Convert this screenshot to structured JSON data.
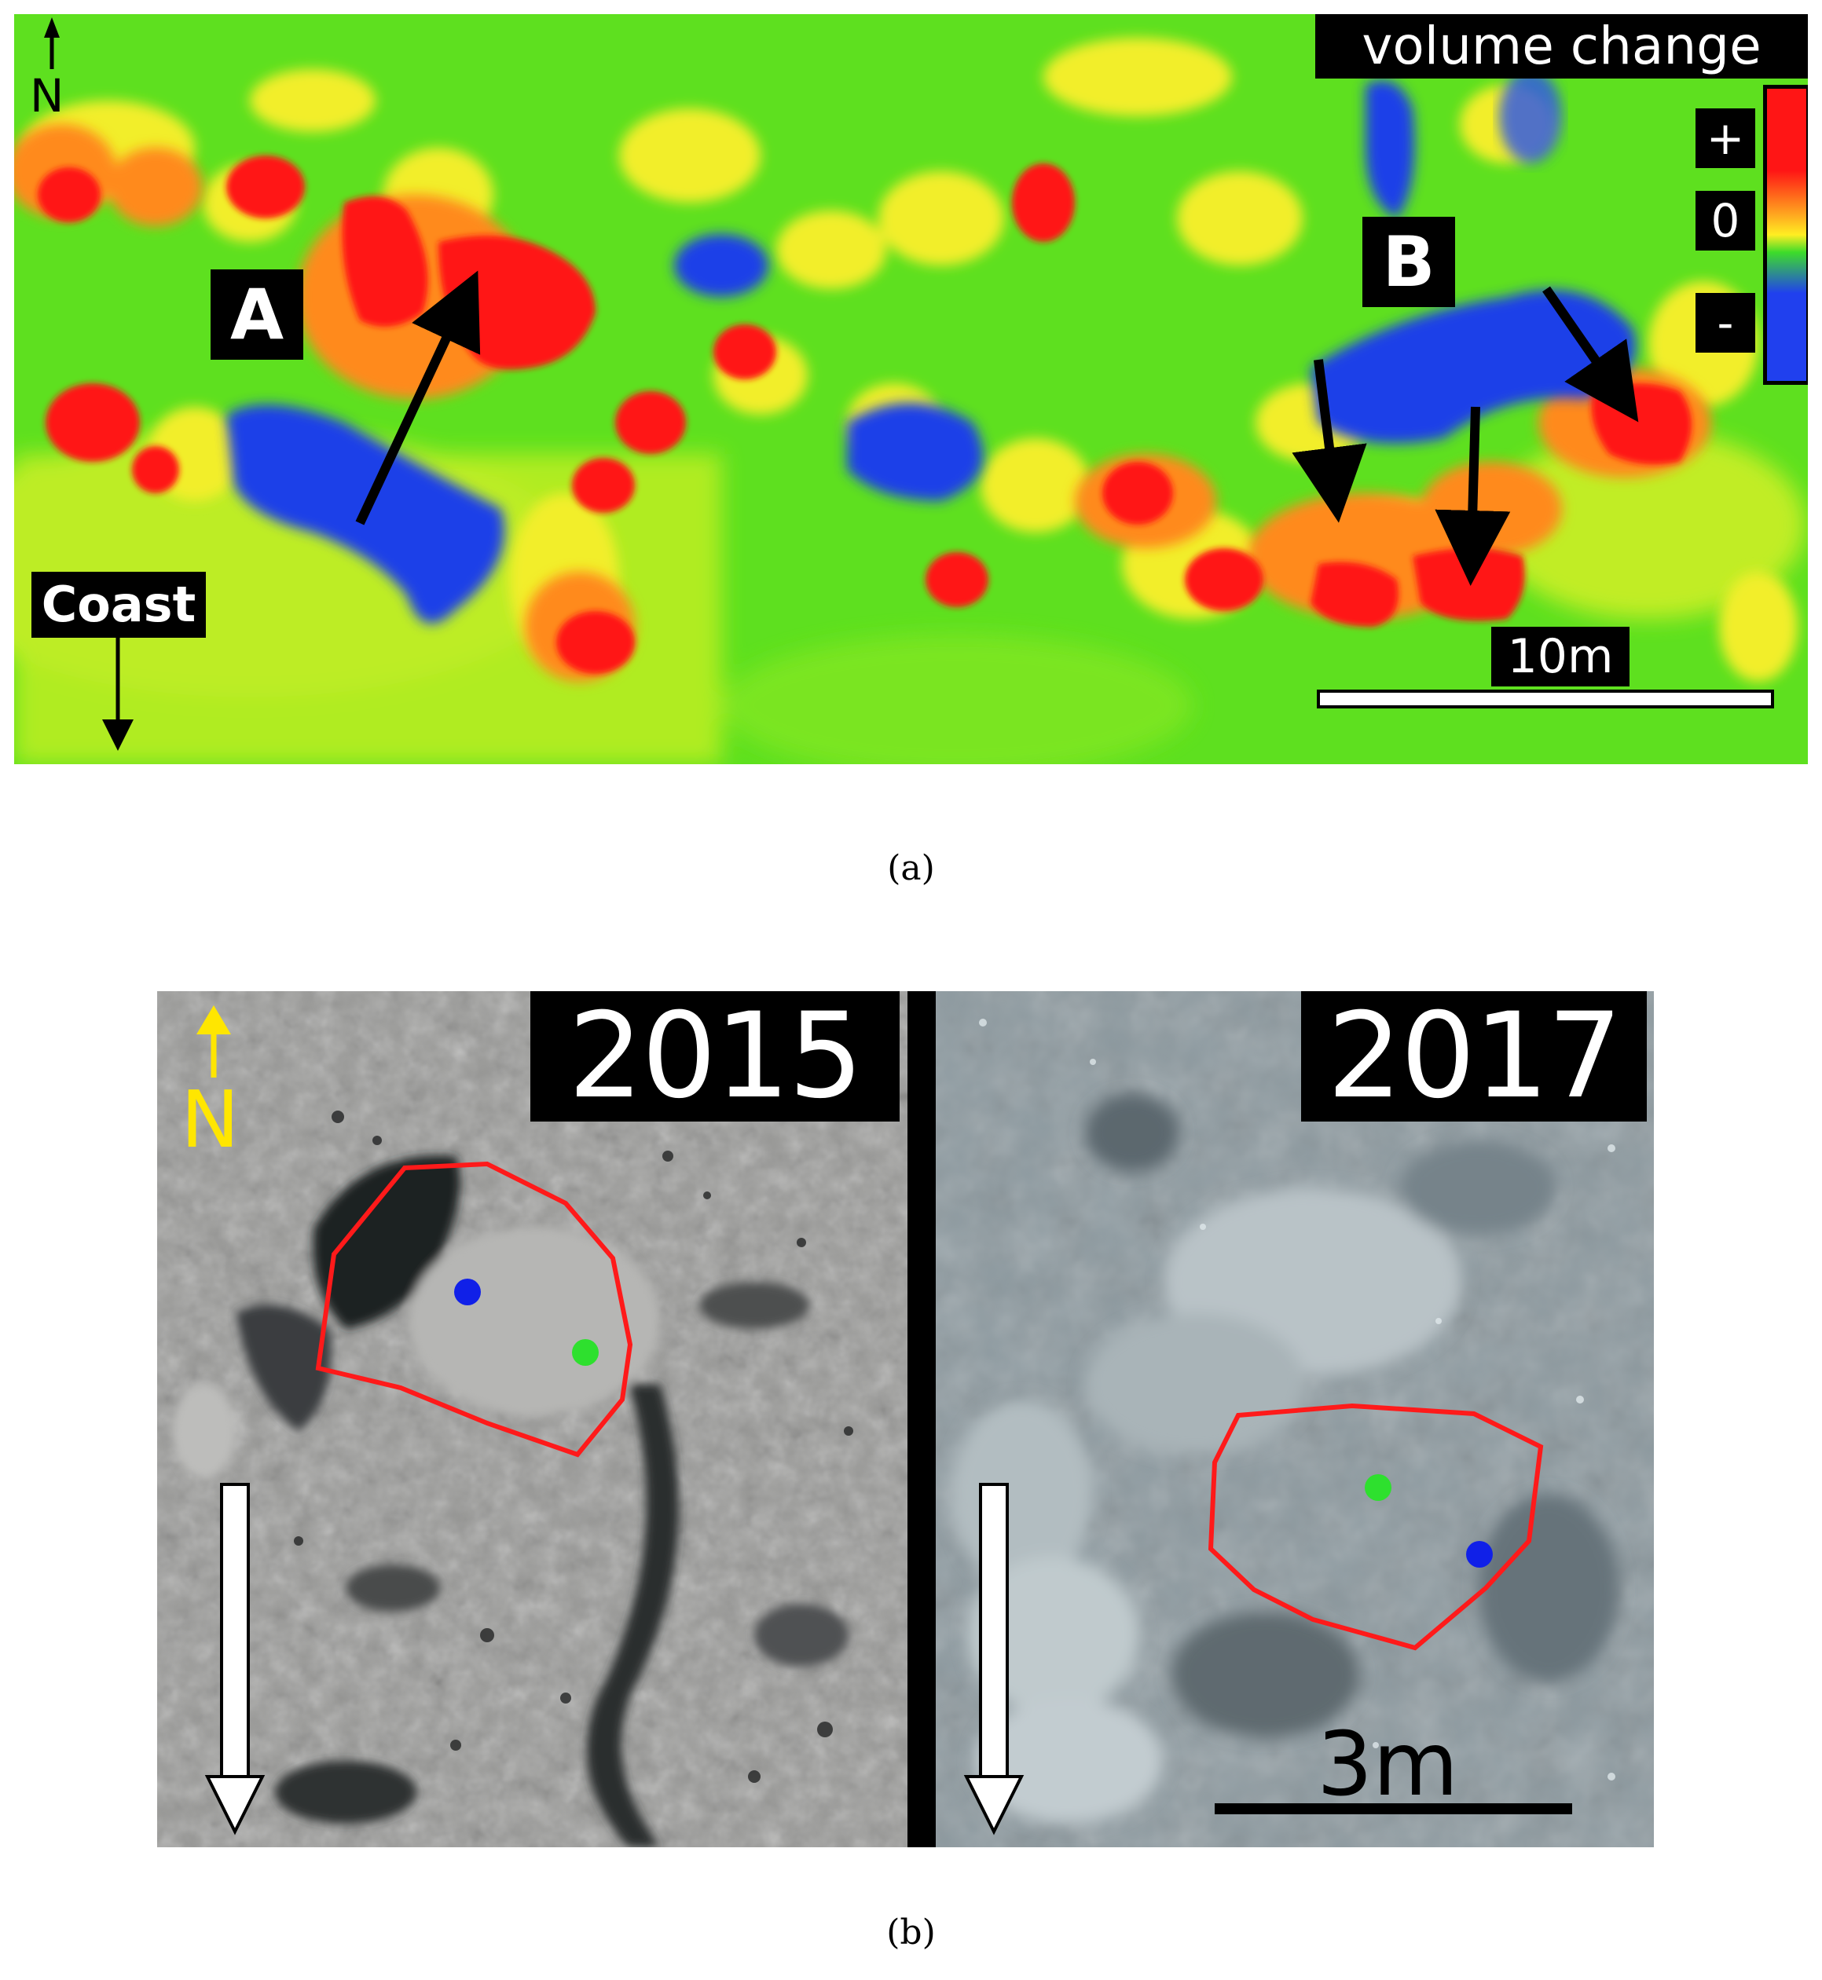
{
  "panel_a": {
    "north_label": "N",
    "legend": {
      "title": "volume change",
      "plus": "+",
      "zero": "0",
      "minus": "-",
      "colors": {
        "positive": "#ff1a1a",
        "neutral": "#3ddc2a",
        "transition": "#ffee22",
        "negative": "#1f3fe6"
      }
    },
    "site_labels": {
      "a": "A",
      "b": "B"
    },
    "coast_label": "Coast",
    "scale_label": "10m",
    "caption": "(a)"
  },
  "panel_b": {
    "left": {
      "year": "2015",
      "north_label": "N",
      "north_color": "#ffe600"
    },
    "right": {
      "year": "2017",
      "scale_label": "3m"
    },
    "outline_color": "#ff1a1a",
    "marker_colors": {
      "first": "#1020e8",
      "second": "#2ee02e"
    },
    "caption": "(b)"
  }
}
